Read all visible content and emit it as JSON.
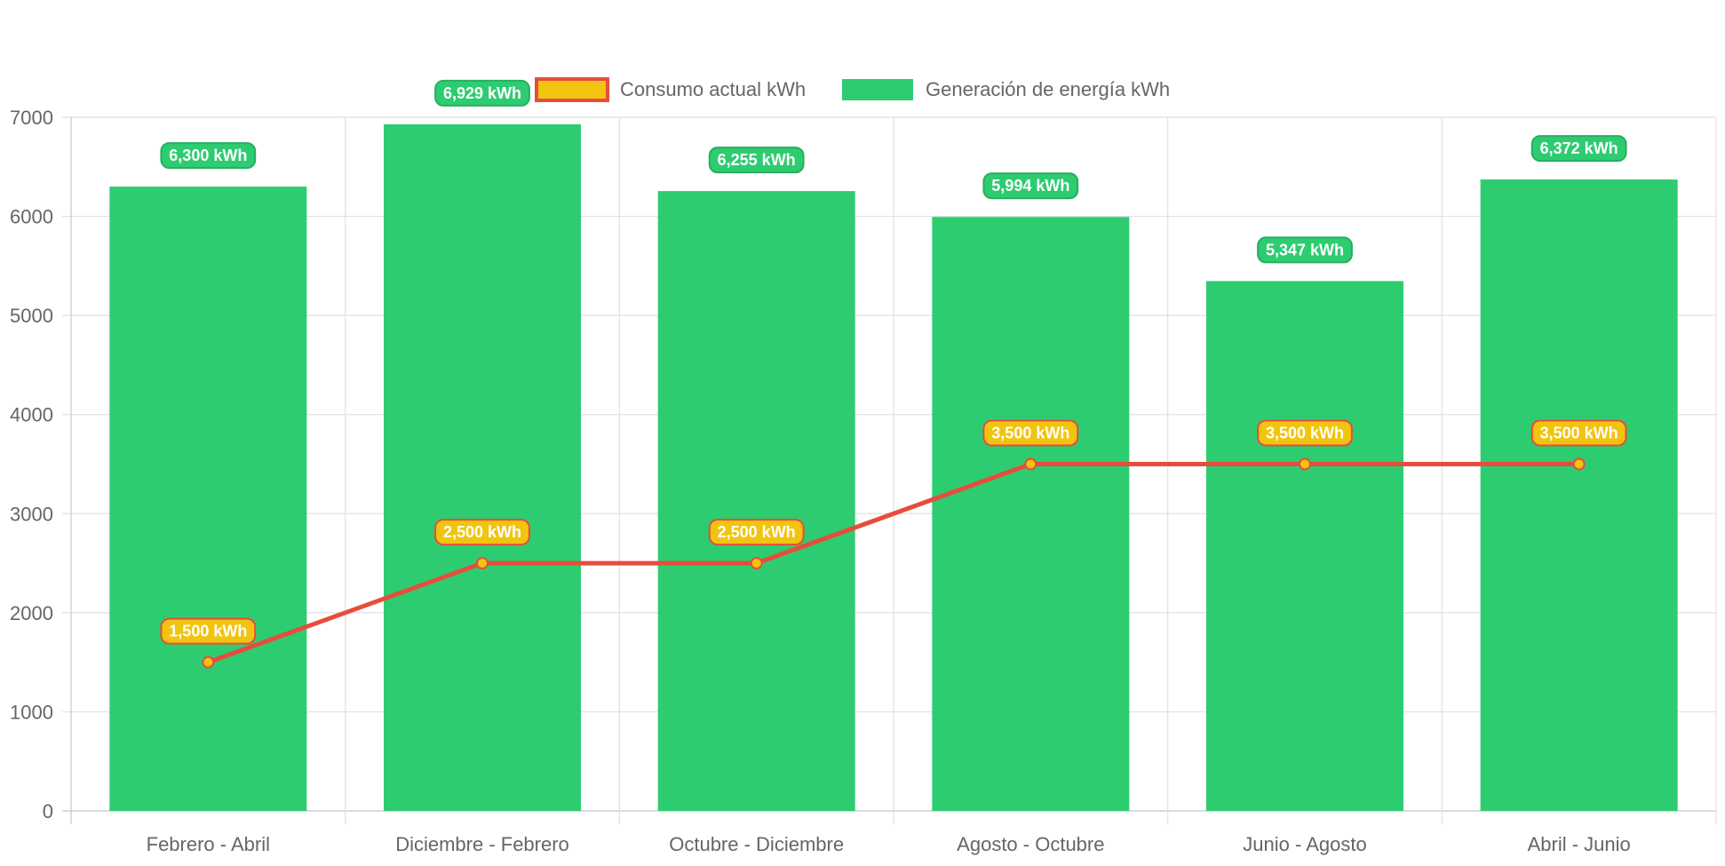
{
  "chart_data": {
    "type": "bar",
    "categories": [
      "Febrero - Abril",
      "Diciembre - Febrero",
      "Octubre - Diciembre",
      "Agosto - Octubre",
      "Junio - Agosto",
      "Abril - Junio"
    ],
    "series": [
      {
        "name": "Consumo actual kWh",
        "type": "line",
        "values": [
          1500,
          2500,
          2500,
          3500,
          3500,
          3500
        ],
        "labels": [
          "1,500 kWh",
          "2,500 kWh",
          "2,500 kWh",
          "3,500 kWh",
          "3,500 kWh",
          "3,500 kWh"
        ],
        "color": "#e74c3c",
        "point_color": "#f1c40f"
      },
      {
        "name": "Generación de energía kWh",
        "type": "bar",
        "values": [
          6300,
          6929,
          6255,
          5994,
          5347,
          6372
        ],
        "labels": [
          "6,300 kWh",
          "6,929 kWh",
          "6,255 kWh",
          "5,994 kWh",
          "5,347 kWh",
          "6,372 kWh"
        ],
        "color": "#2ecc71"
      }
    ],
    "ylim": [
      0,
      7000
    ],
    "yticks": [
      "0",
      "1000",
      "2000",
      "3000",
      "4000",
      "5000",
      "6000",
      "7000"
    ],
    "title": "",
    "xlabel": "",
    "ylabel": "",
    "grid": true,
    "legend_position": "top-center"
  }
}
